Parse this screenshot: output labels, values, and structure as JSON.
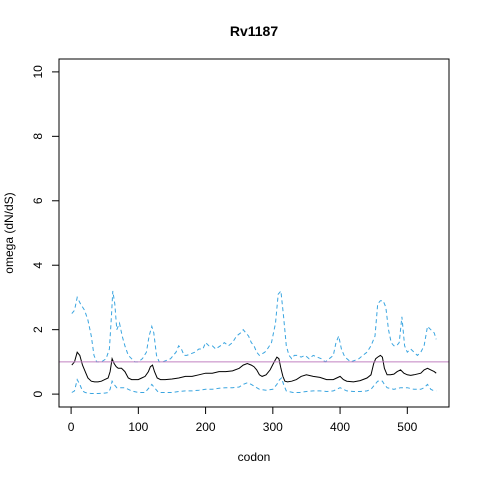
{
  "chart_data": {
    "type": "line",
    "title": "Rv1187",
    "xlabel": "codon",
    "ylabel": "omega (dN/dS)",
    "xlim": [
      -18,
      562
    ],
    "ylim": [
      -0.4,
      10.4
    ],
    "x_ticks": [
      0,
      100,
      200,
      300,
      400,
      500
    ],
    "y_ticks": [
      0,
      2,
      4,
      6,
      8,
      10
    ],
    "grid": false,
    "legend": "none",
    "reference_line": {
      "y": 1,
      "color": "#C080C0"
    },
    "series": [
      {
        "role": "upper",
        "style": "dashed",
        "color": "#3AA5E0",
        "x": [
          1,
          5,
          9,
          14,
          20,
          25,
          30,
          34,
          38,
          45,
          52,
          57,
          60,
          62,
          65,
          68,
          72,
          76,
          80,
          85,
          90,
          95,
          100,
          106,
          112,
          116,
          120,
          123,
          127,
          131,
          136,
          142,
          148,
          152,
          156,
          160,
          164,
          168,
          172,
          178,
          184,
          190,
          196,
          200,
          205,
          210,
          215,
          222,
          228,
          234,
          240,
          246,
          252,
          256,
          260,
          264,
          268,
          272,
          276,
          280,
          284,
          288,
          292,
          298,
          304,
          308,
          312,
          316,
          320,
          324,
          328,
          332,
          336,
          342,
          348,
          354,
          360,
          366,
          372,
          378,
          384,
          390,
          394,
          398,
          402,
          406,
          410,
          416,
          422,
          428,
          434,
          440,
          446,
          452,
          456,
          460,
          464,
          468,
          472,
          476,
          480,
          484,
          488,
          492,
          496,
          500,
          505,
          510,
          515,
          520,
          525,
          530,
          535,
          540,
          543
        ],
        "y": [
          2.5,
          2.6,
          3.0,
          2.8,
          2.6,
          2.3,
          1.8,
          1.2,
          1.0,
          1.0,
          1.1,
          1.4,
          2.4,
          3.2,
          2.8,
          2.0,
          2.2,
          1.8,
          1.5,
          1.2,
          1.1,
          1.0,
          1.0,
          1.1,
          1.3,
          1.8,
          2.1,
          1.9,
          1.2,
          1.0,
          1.0,
          1.05,
          1.1,
          1.2,
          1.3,
          1.5,
          1.4,
          1.2,
          1.2,
          1.25,
          1.3,
          1.4,
          1.4,
          1.6,
          1.5,
          1.5,
          1.4,
          1.5,
          1.6,
          1.5,
          1.6,
          1.8,
          1.9,
          2.0,
          1.9,
          1.8,
          1.6,
          1.5,
          1.3,
          1.2,
          1.25,
          1.3,
          1.4,
          1.6,
          2.2,
          3.1,
          3.2,
          2.4,
          1.5,
          1.2,
          1.1,
          1.2,
          1.2,
          1.15,
          1.2,
          1.1,
          1.2,
          1.15,
          1.1,
          1.0,
          1.1,
          1.2,
          1.6,
          1.8,
          1.4,
          1.2,
          1.1,
          1.0,
          1.05,
          1.1,
          1.2,
          1.3,
          1.5,
          1.8,
          2.8,
          2.9,
          2.9,
          2.7,
          2.0,
          1.6,
          1.5,
          1.5,
          1.6,
          2.4,
          1.5,
          1.3,
          1.4,
          1.3,
          1.2,
          1.3,
          1.5,
          2.1,
          2.0,
          1.9,
          1.7
        ]
      },
      {
        "role": "estimate",
        "style": "solid",
        "color": "#000000",
        "x": [
          1,
          5,
          9,
          13,
          17,
          21,
          25,
          30,
          35,
          40,
          45,
          50,
          55,
          58,
          61,
          64,
          67,
          70,
          75,
          80,
          85,
          90,
          95,
          100,
          105,
          110,
          115,
          118,
          121,
          124,
          128,
          133,
          140,
          150,
          160,
          170,
          180,
          190,
          200,
          210,
          220,
          230,
          240,
          250,
          256,
          262,
          268,
          272,
          276,
          280,
          284,
          290,
          296,
          302,
          306,
          309,
          312,
          315,
          318,
          322,
          328,
          335,
          342,
          350,
          360,
          370,
          380,
          390,
          395,
          400,
          405,
          410,
          420,
          430,
          440,
          446,
          450,
          453,
          456,
          460,
          463,
          466,
          470,
          475,
          480,
          485,
          490,
          495,
          500,
          505,
          510,
          520,
          525,
          530,
          535,
          540,
          543
        ],
        "y": [
          0.9,
          1.0,
          1.3,
          1.2,
          0.9,
          0.7,
          0.5,
          0.4,
          0.38,
          0.38,
          0.4,
          0.45,
          0.5,
          0.7,
          1.1,
          0.95,
          0.85,
          0.8,
          0.8,
          0.7,
          0.5,
          0.45,
          0.45,
          0.45,
          0.5,
          0.55,
          0.7,
          0.85,
          0.9,
          0.7,
          0.5,
          0.45,
          0.45,
          0.47,
          0.5,
          0.55,
          0.55,
          0.6,
          0.65,
          0.65,
          0.7,
          0.7,
          0.72,
          0.8,
          0.9,
          0.95,
          0.9,
          0.85,
          0.75,
          0.6,
          0.55,
          0.6,
          0.75,
          1.0,
          1.15,
          1.1,
          0.8,
          0.55,
          0.4,
          0.38,
          0.4,
          0.45,
          0.55,
          0.6,
          0.55,
          0.52,
          0.45,
          0.45,
          0.5,
          0.55,
          0.45,
          0.4,
          0.38,
          0.42,
          0.5,
          0.6,
          0.95,
          1.1,
          1.15,
          1.2,
          1.15,
          0.8,
          0.6,
          0.6,
          0.62,
          0.7,
          0.75,
          0.65,
          0.6,
          0.58,
          0.6,
          0.65,
          0.75,
          0.8,
          0.75,
          0.7,
          0.65
        ]
      },
      {
        "role": "lower",
        "style": "dashed",
        "color": "#3AA5E0",
        "x": [
          1,
          5,
          9,
          13,
          17,
          21,
          25,
          30,
          40,
          50,
          55,
          58,
          61,
          64,
          68,
          72,
          80,
          90,
          100,
          110,
          116,
          120,
          124,
          130,
          140,
          150,
          160,
          170,
          180,
          190,
          200,
          210,
          220,
          230,
          240,
          250,
          256,
          262,
          268,
          272,
          276,
          280,
          290,
          300,
          306,
          310,
          313,
          316,
          320,
          330,
          340,
          350,
          360,
          370,
          380,
          390,
          395,
          400,
          405,
          410,
          420,
          430,
          440,
          446,
          452,
          456,
          460,
          463,
          466,
          470,
          480,
          490,
          500,
          510,
          520,
          525,
          530,
          535,
          540,
          543
        ],
        "y": [
          0.05,
          0.1,
          0.45,
          0.3,
          0.1,
          0.05,
          0.03,
          0.02,
          0.02,
          0.03,
          0.05,
          0.15,
          0.4,
          0.3,
          0.2,
          0.2,
          0.2,
          0.1,
          0.05,
          0.05,
          0.2,
          0.3,
          0.2,
          0.05,
          0.05,
          0.05,
          0.08,
          0.1,
          0.1,
          0.12,
          0.15,
          0.15,
          0.18,
          0.2,
          0.2,
          0.22,
          0.3,
          0.35,
          0.3,
          0.25,
          0.2,
          0.15,
          0.12,
          0.15,
          0.3,
          0.45,
          0.5,
          0.3,
          0.1,
          0.05,
          0.05,
          0.08,
          0.1,
          0.1,
          0.08,
          0.1,
          0.15,
          0.2,
          0.15,
          0.1,
          0.08,
          0.08,
          0.1,
          0.15,
          0.3,
          0.4,
          0.42,
          0.4,
          0.3,
          0.2,
          0.15,
          0.2,
          0.2,
          0.15,
          0.15,
          0.2,
          0.3,
          0.15,
          0.1,
          0.1
        ]
      }
    ]
  }
}
